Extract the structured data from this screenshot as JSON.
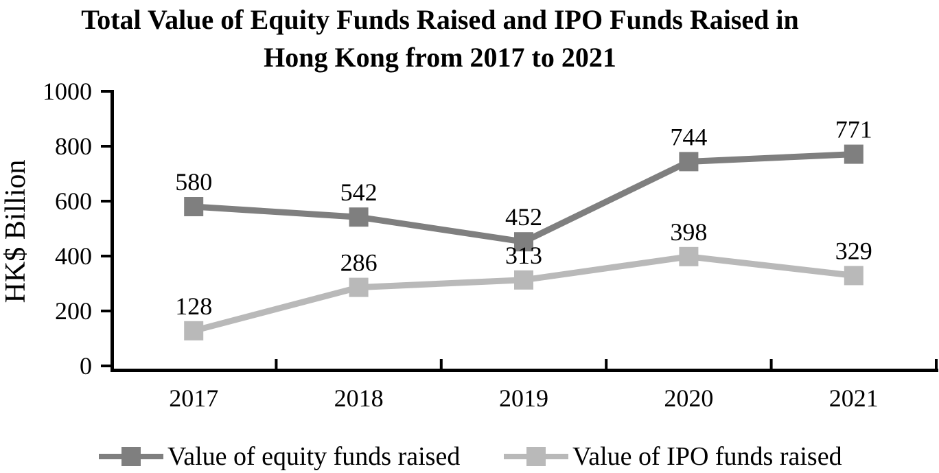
{
  "chart_data": {
    "type": "line",
    "title": "Total Value of Equity Funds Raised and IPO Funds Raised in Hong Kong from 2017 to 2021",
    "title_lines": [
      "Total Value of Equity Funds Raised and IPO Funds Raised in",
      "Hong Kong from 2017 to 2021"
    ],
    "xlabel": "",
    "ylabel": "HK$ Billion",
    "categories": [
      "2017",
      "2018",
      "2019",
      "2020",
      "2021"
    ],
    "series": [
      {
        "name": "Value of equity funds raised",
        "values": [
          580,
          542,
          452,
          744,
          771
        ],
        "color": "#7f7f7f"
      },
      {
        "name": "Value of IPO funds raised",
        "values": [
          128,
          286,
          313,
          398,
          329
        ],
        "color": "#b9b9b9"
      }
    ],
    "ylim": [
      0,
      1000
    ],
    "yticks": [
      0,
      200,
      400,
      600,
      800,
      1000
    ],
    "grid": false,
    "data_labels": true,
    "marker": "square",
    "legend_position": "bottom",
    "axis_color": "#000000",
    "text_color": "#000000",
    "background": "#ffffff"
  }
}
